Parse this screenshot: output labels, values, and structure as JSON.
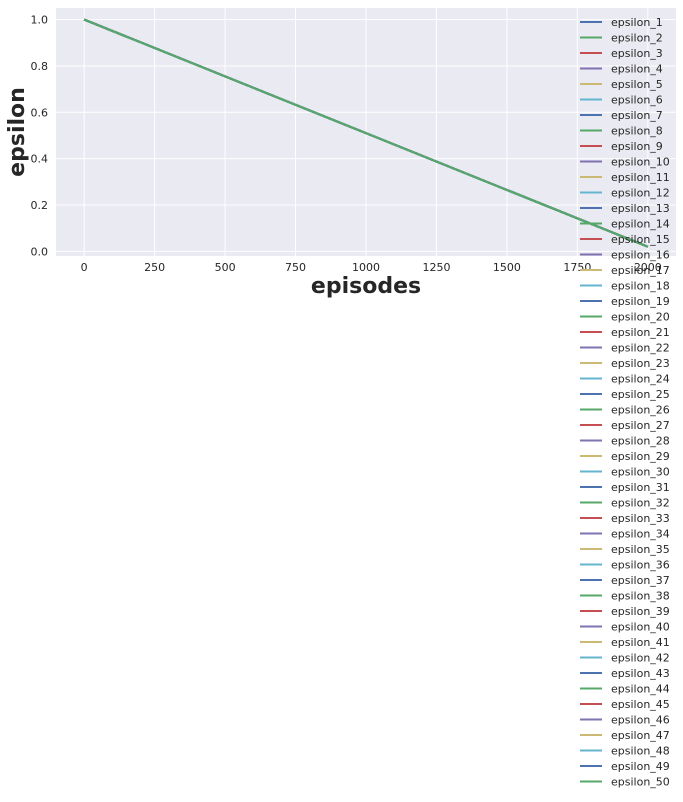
{
  "chart_data": {
    "type": "line",
    "xlabel": "episodes",
    "ylabel": "epsilon",
    "xlim": [
      -100,
      2100
    ],
    "ylim": [
      -0.02,
      1.05
    ],
    "xticks": [
      0,
      250,
      500,
      750,
      1000,
      1250,
      1500,
      1750,
      2000
    ],
    "xtick_labels": [
      "0",
      "250",
      "500",
      "750",
      "1000",
      "1250",
      "1500",
      "1750",
      "2000"
    ],
    "yticks": [
      0.0,
      0.2,
      0.4,
      0.6,
      0.8,
      1.0
    ],
    "ytick_labels": [
      "0.0",
      "0.2",
      "0.4",
      "0.6",
      "0.8",
      "1.0"
    ],
    "grid": true,
    "legend_position": "top-right",
    "palette": [
      "#4c72b0",
      "#55a868",
      "#c44e52",
      "#8172b2",
      "#ccb974",
      "#64b5cd"
    ],
    "series_x": [
      0,
      2000
    ],
    "series_y": [
      1.0,
      0.02
    ],
    "series": [
      {
        "name": "epsilon_1"
      },
      {
        "name": "epsilon_2"
      },
      {
        "name": "epsilon_3"
      },
      {
        "name": "epsilon_4"
      },
      {
        "name": "epsilon_5"
      },
      {
        "name": "epsilon_6"
      },
      {
        "name": "epsilon_7"
      },
      {
        "name": "epsilon_8"
      },
      {
        "name": "epsilon_9"
      },
      {
        "name": "epsilon_10"
      },
      {
        "name": "epsilon_11"
      },
      {
        "name": "epsilon_12"
      },
      {
        "name": "epsilon_13"
      },
      {
        "name": "epsilon_14"
      },
      {
        "name": "epsilon_15"
      },
      {
        "name": "epsilon_16"
      },
      {
        "name": "epsilon_17"
      },
      {
        "name": "epsilon_18"
      },
      {
        "name": "epsilon_19"
      },
      {
        "name": "epsilon_20"
      },
      {
        "name": "epsilon_21"
      },
      {
        "name": "epsilon_22"
      },
      {
        "name": "epsilon_23"
      },
      {
        "name": "epsilon_24"
      },
      {
        "name": "epsilon_25"
      },
      {
        "name": "epsilon_26"
      },
      {
        "name": "epsilon_27"
      },
      {
        "name": "epsilon_28"
      },
      {
        "name": "epsilon_29"
      },
      {
        "name": "epsilon_30"
      },
      {
        "name": "epsilon_31"
      },
      {
        "name": "epsilon_32"
      },
      {
        "name": "epsilon_33"
      },
      {
        "name": "epsilon_34"
      },
      {
        "name": "epsilon_35"
      },
      {
        "name": "epsilon_36"
      },
      {
        "name": "epsilon_37"
      },
      {
        "name": "epsilon_38"
      },
      {
        "name": "epsilon_39"
      },
      {
        "name": "epsilon_40"
      },
      {
        "name": "epsilon_41"
      },
      {
        "name": "epsilon_42"
      },
      {
        "name": "epsilon_43"
      },
      {
        "name": "epsilon_44"
      },
      {
        "name": "epsilon_45"
      },
      {
        "name": "epsilon_46"
      },
      {
        "name": "epsilon_47"
      },
      {
        "name": "epsilon_48"
      },
      {
        "name": "epsilon_49"
      },
      {
        "name": "epsilon_50"
      }
    ]
  }
}
